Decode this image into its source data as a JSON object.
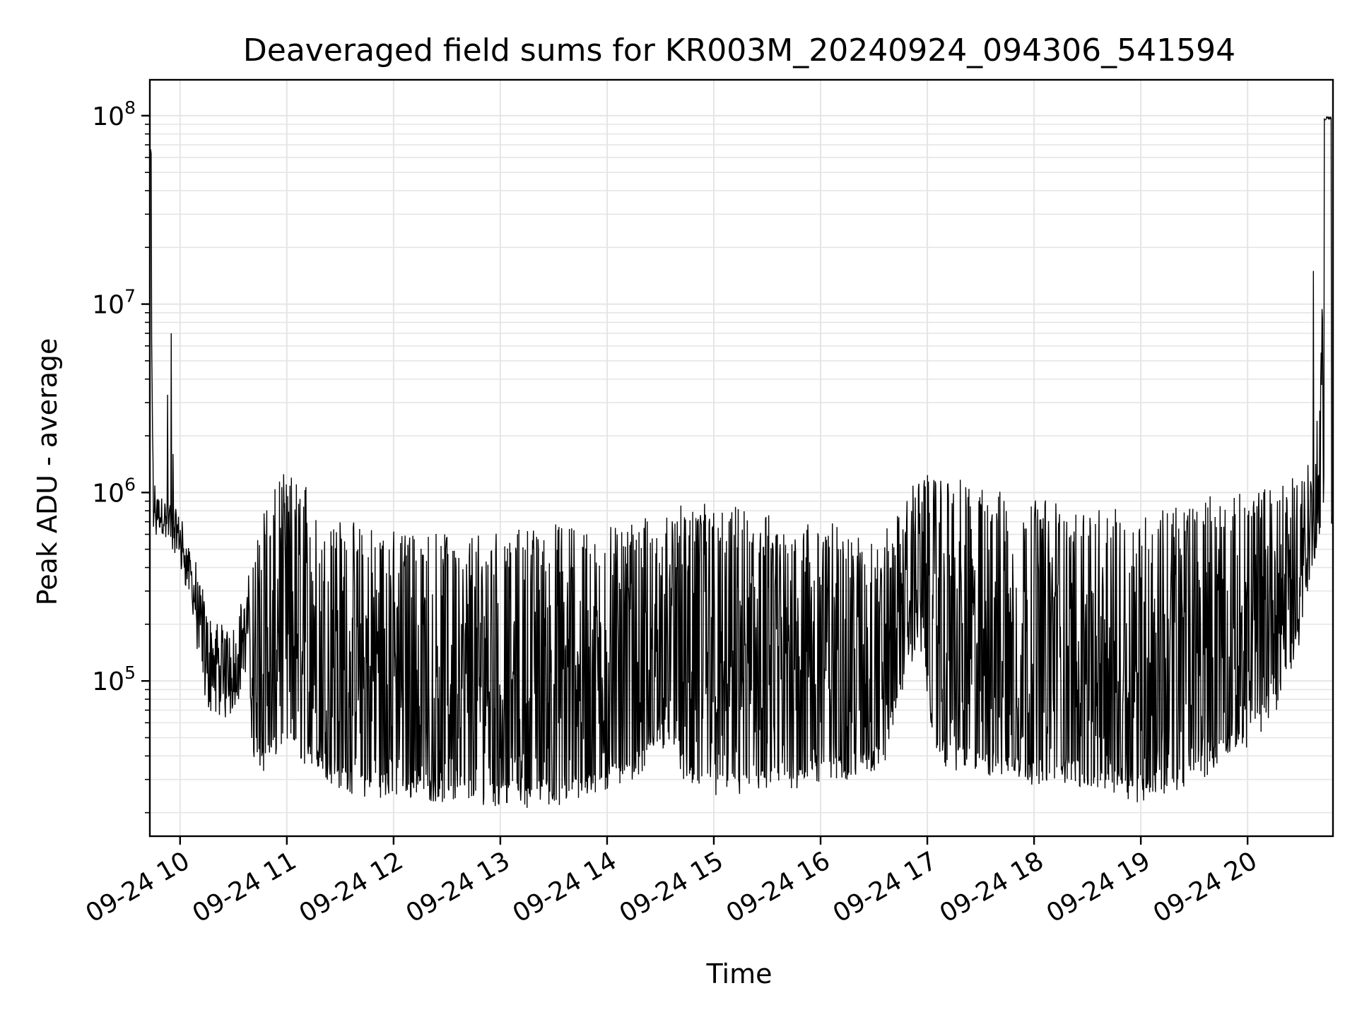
{
  "chart_data": {
    "type": "line",
    "title": "Deaveraged field sums for KR003M_20240924_094306_541594",
    "xlabel": "Time",
    "ylabel": "Peak ADU - average",
    "yscale": "log",
    "ylim": [
      15000,
      155000000
    ],
    "xlim": [
      "09-24 09:43",
      "09-24 20:48"
    ],
    "grid": true,
    "line_color": "#000000",
    "grid_color": "#e5e5e5",
    "x_ticks": [
      {
        "t": "09-24 10:00",
        "label": "09-24 10"
      },
      {
        "t": "09-24 11:00",
        "label": "09-24 11"
      },
      {
        "t": "09-24 12:00",
        "label": "09-24 12"
      },
      {
        "t": "09-24 13:00",
        "label": "09-24 13"
      },
      {
        "t": "09-24 14:00",
        "label": "09-24 14"
      },
      {
        "t": "09-24 15:00",
        "label": "09-24 15"
      },
      {
        "t": "09-24 16:00",
        "label": "09-24 16"
      },
      {
        "t": "09-24 17:00",
        "label": "09-24 17"
      },
      {
        "t": "09-24 18:00",
        "label": "09-24 18"
      },
      {
        "t": "09-24 19:00",
        "label": "09-24 19"
      },
      {
        "t": "09-24 20:00",
        "label": "09-24 20"
      }
    ],
    "y_ticks": [
      {
        "value": 100000,
        "base": "10",
        "exp": "5"
      },
      {
        "value": 1000000,
        "base": "10",
        "exp": "6"
      },
      {
        "value": 10000000,
        "base": "10",
        "exp": "7"
      },
      {
        "value": 100000000,
        "base": "10",
        "exp": "8"
      }
    ],
    "series": [
      {
        "band": "envelope of noisy trace",
        "x": [
          "09-24 09:43",
          "09-24 09:45",
          "09-24 09:50",
          "09-24 09:55",
          "09-24 10:00",
          "09-24 10:05",
          "09-24 10:10",
          "09-24 10:15",
          "09-24 10:20",
          "09-24 10:25",
          "09-24 10:30",
          "09-24 10:35",
          "09-24 10:38",
          "09-24 10:42",
          "09-24 10:48",
          "09-24 10:55",
          "09-24 11:00",
          "09-24 11:10",
          "09-24 11:20",
          "09-24 11:30",
          "09-24 11:40",
          "09-24 12:00",
          "09-24 12:30",
          "09-24 13:00",
          "09-24 13:30",
          "09-24 14:00",
          "09-24 14:20",
          "09-24 14:35",
          "09-24 14:45",
          "09-24 15:00",
          "09-24 15:20",
          "09-24 15:40",
          "09-24 16:00",
          "09-24 16:20",
          "09-24 16:35",
          "09-24 16:45",
          "09-24 16:55",
          "09-24 17:05",
          "09-24 17:20",
          "09-24 17:40",
          "09-24 18:00",
          "09-24 18:20",
          "09-24 18:40",
          "09-24 19:00",
          "09-24 19:20",
          "09-24 19:35",
          "09-24 19:45",
          "09-24 20:00",
          "09-24 20:15",
          "09-24 20:30",
          "09-24 20:40",
          "09-24 20:44",
          "09-24 20:48"
        ],
        "low": [
          60000000,
          700000,
          600000,
          600000,
          450000,
          350000,
          150000,
          90000,
          80000,
          75000,
          85000,
          110000,
          120000,
          38000,
          40000,
          50000,
          55000,
          45000,
          38000,
          33000,
          30000,
          30000,
          28000,
          27000,
          26000,
          32000,
          40000,
          60000,
          32000,
          30000,
          30000,
          32000,
          35000,
          38000,
          40000,
          100000,
          200000,
          45000,
          40000,
          38000,
          35000,
          35000,
          32000,
          28000,
          32000,
          38000,
          45000,
          55000,
          80000,
          200000,
          700000,
          800000,
          550000
        ],
        "high": [
          68000000,
          1000000,
          950000,
          900000,
          750000,
          500000,
          350000,
          250000,
          200000,
          180000,
          200000,
          250000,
          300000,
          500000,
          900000,
          1100000,
          1100000,
          1000000,
          800000,
          650000,
          600000,
          550000,
          550000,
          550000,
          600000,
          600000,
          650000,
          650000,
          800000,
          800000,
          700000,
          650000,
          650000,
          550000,
          550000,
          700000,
          1100000,
          1200000,
          1000000,
          900000,
          850000,
          800000,
          700000,
          750000,
          800000,
          900000,
          800000,
          900000,
          1000000,
          1300000,
          1500000,
          95000000,
          1600000
        ]
      },
      {
        "band": "spikes",
        "x": [
          "09-24 09:43",
          "09-24 09:53",
          "09-24 09:55",
          "09-24 09:56",
          "09-24 20:37",
          "09-24 20:39",
          "09-24 20:44",
          "09-24 20:46"
        ],
        "values": [
          67000000,
          3300000,
          7000000,
          1600000,
          15000000,
          2400000,
          98000000,
          97000000
        ]
      }
    ]
  }
}
